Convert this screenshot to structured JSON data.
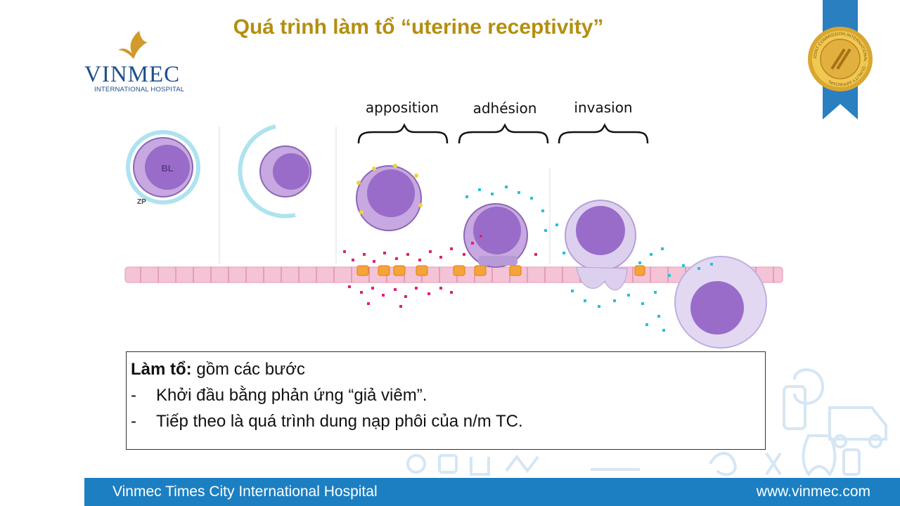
{
  "slide": {
    "title": "Quá trình làm tổ “uterine receptivity”"
  },
  "logo": {
    "brand": "VINMEC",
    "subtitle": "INTERNATIONAL HOSPITAL"
  },
  "seal": {
    "ring_text": "JOINT COMMISSION INTERNATIONAL · QUALITY APPROVAL ·"
  },
  "diagram": {
    "stages": [
      "apposition",
      "adhésion",
      "invasion"
    ],
    "markers": {
      "blastocyst": "BL",
      "zona": "ZP"
    }
  },
  "textbox": {
    "heading_bold": "Làm tổ:",
    "heading_rest": " gồm các bước",
    "bullets": [
      "Khởi đầu bằng phản ứng “giả viêm”.",
      "Tiếp theo là quá trình dung nạp phôi của n/m TC."
    ],
    "bullet_marker": "-"
  },
  "footer": {
    "left": "Vinmec Times City International Hospital",
    "right": "www.vinmec.com"
  },
  "colors": {
    "title": "#b38f10",
    "brand_blue": "#1d4f8c",
    "footer_bg": "#1c7fc2",
    "embryo": "#9a6cc9",
    "epithelium": "#f2b8cf",
    "magenta_dots": "#e0207a",
    "cyan_dots": "#22c4d8"
  }
}
